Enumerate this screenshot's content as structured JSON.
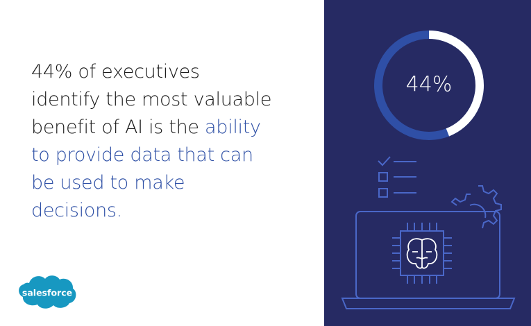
{
  "headline": {
    "lines": [
      [
        {
          "text": "44% of executives",
          "emphasis": false
        }
      ],
      [
        {
          "text": "identify the most valuable",
          "emphasis": false
        }
      ],
      [
        {
          "text": "benefit of AI is the ",
          "emphasis": false
        },
        {
          "text": "ability",
          "emphasis": true
        }
      ],
      [
        {
          "text": "to provide data that can",
          "emphasis": true
        }
      ],
      [
        {
          "text": "be used to make",
          "emphasis": true
        }
      ],
      [
        {
          "text": "decisions.",
          "emphasis": true
        }
      ]
    ]
  },
  "logo": {
    "text": "salesforce"
  },
  "chart_data": {
    "type": "donut",
    "values": [
      44
    ],
    "value_labels": [
      "44%"
    ],
    "color": "#ffffff",
    "track_color": "#2f4fa6"
  }
}
